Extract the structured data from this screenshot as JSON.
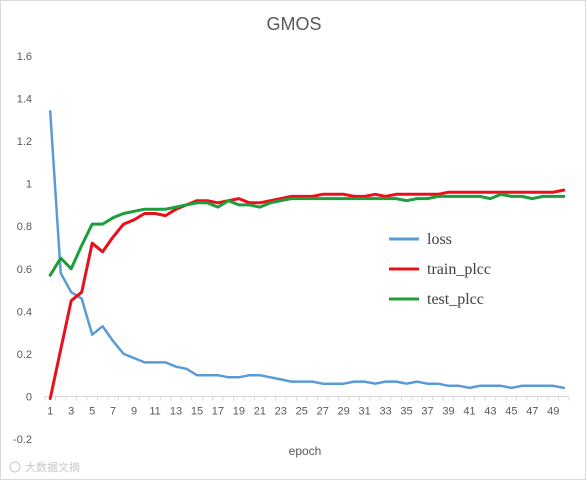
{
  "chart_data": {
    "type": "line",
    "title": "GMOS",
    "xlabel": "epoch",
    "ylabel": "",
    "x": [
      1,
      2,
      3,
      4,
      5,
      6,
      7,
      8,
      9,
      10,
      11,
      12,
      13,
      14,
      15,
      16,
      17,
      18,
      19,
      20,
      21,
      22,
      23,
      24,
      25,
      26,
      27,
      28,
      29,
      30,
      31,
      32,
      33,
      34,
      35,
      36,
      37,
      38,
      39,
      40,
      41,
      42,
      43,
      44,
      45,
      46,
      47,
      48,
      49,
      50
    ],
    "x_tick_labels": [
      "1",
      "3",
      "5",
      "7",
      "9",
      "11",
      "13",
      "15",
      "17",
      "19",
      "21",
      "23",
      "25",
      "27",
      "29",
      "31",
      "33",
      "35",
      "37",
      "39",
      "41",
      "43",
      "45",
      "47",
      "49"
    ],
    "ylim": [
      -0.2,
      1.6
    ],
    "y_ticks": [
      -0.2,
      0,
      0.2,
      0.4,
      0.6,
      0.8,
      1,
      1.2,
      1.4,
      1.6
    ],
    "y_tick_labels": [
      "-0.2",
      "0",
      "0.2",
      "0.4",
      "0.6",
      "0.8",
      "1",
      "1.2",
      "1.4",
      "1.6"
    ],
    "grid": false,
    "legend_position": "right-center",
    "series": [
      {
        "name": "loss",
        "color": "#5b9bd5",
        "values": [
          1.34,
          0.58,
          0.49,
          0.46,
          0.29,
          0.33,
          0.26,
          0.2,
          0.18,
          0.16,
          0.16,
          0.16,
          0.14,
          0.13,
          0.1,
          0.1,
          0.1,
          0.09,
          0.09,
          0.1,
          0.1,
          0.09,
          0.08,
          0.07,
          0.07,
          0.07,
          0.06,
          0.06,
          0.06,
          0.07,
          0.07,
          0.06,
          0.07,
          0.07,
          0.06,
          0.07,
          0.06,
          0.06,
          0.05,
          0.05,
          0.04,
          0.05,
          0.05,
          0.05,
          0.04,
          0.05,
          0.05,
          0.05,
          0.05,
          0.04
        ]
      },
      {
        "name": "train_plcc",
        "color": "#e8101a",
        "values": [
          -0.01,
          0.22,
          0.45,
          0.49,
          0.72,
          0.68,
          0.75,
          0.81,
          0.83,
          0.86,
          0.86,
          0.85,
          0.88,
          0.9,
          0.92,
          0.92,
          0.91,
          0.92,
          0.93,
          0.91,
          0.91,
          0.92,
          0.93,
          0.94,
          0.94,
          0.94,
          0.95,
          0.95,
          0.95,
          0.94,
          0.94,
          0.95,
          0.94,
          0.95,
          0.95,
          0.95,
          0.95,
          0.95,
          0.96,
          0.96,
          0.96,
          0.96,
          0.96,
          0.96,
          0.96,
          0.96,
          0.96,
          0.96,
          0.96,
          0.97
        ]
      },
      {
        "name": "test_plcc",
        "color": "#1f9d3a",
        "values": [
          0.57,
          0.65,
          0.6,
          0.71,
          0.81,
          0.81,
          0.84,
          0.86,
          0.87,
          0.88,
          0.88,
          0.88,
          0.89,
          0.9,
          0.91,
          0.91,
          0.89,
          0.92,
          0.9,
          0.9,
          0.89,
          0.91,
          0.92,
          0.93,
          0.93,
          0.93,
          0.93,
          0.93,
          0.93,
          0.93,
          0.93,
          0.93,
          0.93,
          0.93,
          0.92,
          0.93,
          0.93,
          0.94,
          0.94,
          0.94,
          0.94,
          0.94,
          0.93,
          0.95,
          0.94,
          0.94,
          0.93,
          0.94,
          0.94,
          0.94
        ]
      }
    ]
  },
  "watermark": "大数据文摘"
}
